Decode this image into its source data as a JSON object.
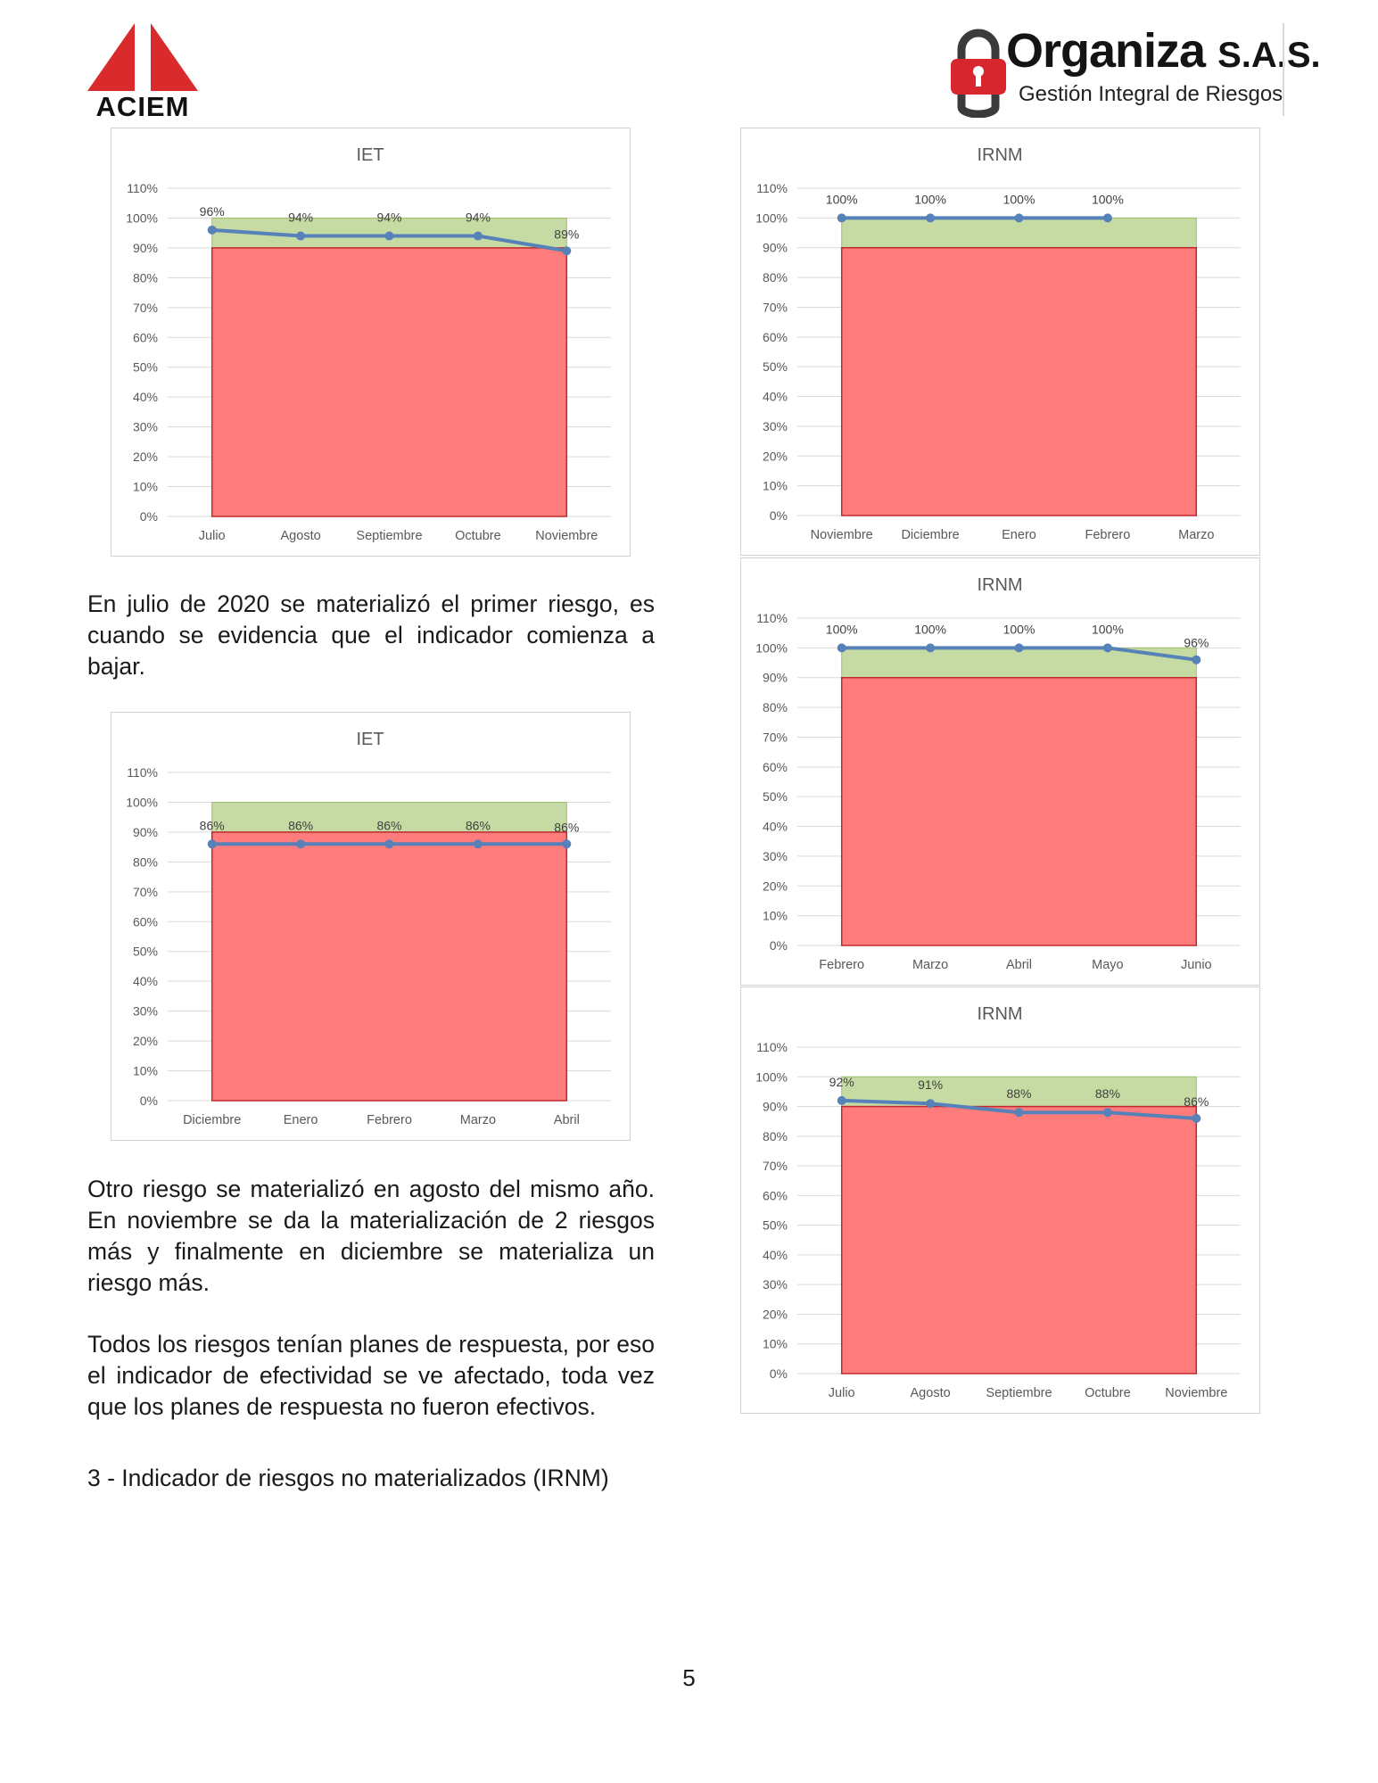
{
  "header": {
    "left_logo_text": "ACIEM",
    "right_logo_name": "Organiza",
    "right_logo_suffix": "S.A.S.",
    "right_logo_tagline": "Gestión Integral de Riesgos"
  },
  "paragraphs": {
    "p1": "En julio de 2020 se materializó el primer riesgo, es cuando se evidencia que el indicador comienza a bajar.",
    "p2": "Otro riesgo se materializó en agosto del mismo año. En noviembre se da la materialización de 2 riesgos más y finalmente en diciembre se materializa un riesgo más.",
    "p3": "Todos los riesgos tenían planes de respuesta, por eso el indicador de efectividad se ve afectado, toda vez que los planes de respuesta no fueron efectivos.",
    "heading": "3 - Indicador de riesgos no materializados (IRNM)"
  },
  "page_number": "5",
  "chart_data": [
    {
      "type": "line",
      "title": "IET",
      "categories": [
        "Julio",
        "Agosto",
        "Septiembre",
        "Octubre",
        "Noviembre"
      ],
      "series": [
        {
          "values": [
            96,
            94,
            94,
            94,
            89
          ]
        }
      ],
      "data_labels": [
        "96%",
        "94%",
        "94%",
        "94%",
        "89%"
      ],
      "bands": {
        "red": [
          0,
          90
        ],
        "green": [
          90,
          100
        ]
      },
      "ylim": [
        0,
        110
      ],
      "yticks": [
        "0%",
        "10%",
        "20%",
        "30%",
        "40%",
        "50%",
        "60%",
        "70%",
        "80%",
        "90%",
        "100%",
        "110%"
      ],
      "grid": true,
      "colors": {
        "red": "#ff7c7c",
        "green": "#c6dba4",
        "line": "#5682b9"
      }
    },
    {
      "type": "line",
      "title": "IET",
      "categories": [
        "Diciembre",
        "Enero",
        "Febrero",
        "Marzo",
        "Abril"
      ],
      "series": [
        {
          "values": [
            86,
            86,
            86,
            86,
            86
          ]
        }
      ],
      "data_labels": [
        "86%",
        "86%",
        "86%",
        "86%",
        "86%"
      ],
      "bands": {
        "red": [
          0,
          90
        ],
        "green": [
          90,
          100
        ]
      },
      "ylim": [
        0,
        110
      ],
      "yticks": [
        "0%",
        "10%",
        "20%",
        "30%",
        "40%",
        "50%",
        "60%",
        "70%",
        "80%",
        "90%",
        "100%",
        "110%"
      ],
      "grid": true,
      "colors": {
        "red": "#ff7c7c",
        "green": "#c6dba4",
        "line": "#5682b9"
      }
    },
    {
      "type": "line",
      "title": "IRNM",
      "categories": [
        "Noviembre",
        "Diciembre",
        "Enero",
        "Febrero",
        "Marzo"
      ],
      "series": [
        {
          "values": [
            100,
            100,
            100,
            100,
            null
          ]
        }
      ],
      "data_labels": [
        "100%",
        "100%",
        "100%",
        "100%",
        ""
      ],
      "bands": {
        "red": [
          0,
          90
        ],
        "green": [
          90,
          100
        ]
      },
      "ylim": [
        0,
        110
      ],
      "yticks": [
        "0%",
        "10%",
        "20%",
        "30%",
        "40%",
        "50%",
        "60%",
        "70%",
        "80%",
        "90%",
        "100%",
        "110%"
      ],
      "grid": true,
      "colors": {
        "red": "#ff7c7c",
        "green": "#c6dba4",
        "line": "#5682b9"
      }
    },
    {
      "type": "line",
      "title": "IRNM",
      "categories": [
        "Febrero",
        "Marzo",
        "Abril",
        "Mayo",
        "Junio"
      ],
      "series": [
        {
          "values": [
            100,
            100,
            100,
            100,
            96
          ]
        }
      ],
      "data_labels": [
        "100%",
        "100%",
        "100%",
        "100%",
        "96%"
      ],
      "bands": {
        "red": [
          0,
          90
        ],
        "green": [
          90,
          100
        ]
      },
      "ylim": [
        0,
        110
      ],
      "yticks": [
        "0%",
        "10%",
        "20%",
        "30%",
        "40%",
        "50%",
        "60%",
        "70%",
        "80%",
        "90%",
        "100%",
        "110%"
      ],
      "grid": true,
      "colors": {
        "red": "#ff7c7c",
        "green": "#c6dba4",
        "line": "#5682b9"
      }
    },
    {
      "type": "line",
      "title": "IRNM",
      "categories": [
        "Julio",
        "Agosto",
        "Septiembre",
        "Octubre",
        "Noviembre"
      ],
      "series": [
        {
          "values": [
            92,
            91,
            88,
            88,
            86
          ]
        }
      ],
      "data_labels": [
        "92%",
        "91%",
        "88%",
        "88%",
        "86%"
      ],
      "bands": {
        "red": [
          0,
          90
        ],
        "green": [
          90,
          100
        ]
      },
      "ylim": [
        0,
        110
      ],
      "yticks": [
        "0%",
        "10%",
        "20%",
        "30%",
        "40%",
        "50%",
        "60%",
        "70%",
        "80%",
        "90%",
        "100%",
        "110%"
      ],
      "grid": true,
      "colors": {
        "red": "#ff7c7c",
        "green": "#c6dba4",
        "line": "#5682b9"
      }
    }
  ]
}
